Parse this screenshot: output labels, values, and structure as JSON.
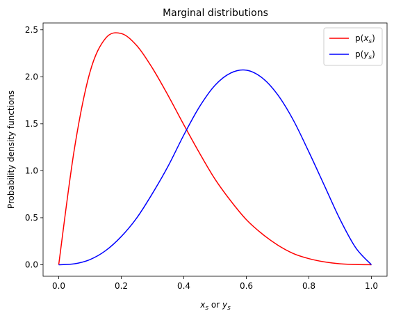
{
  "chart_data": {
    "type": "line",
    "title": "Marginal distributions",
    "xlabel": {
      "a": "x",
      "a_sub": "s",
      "mid": " or ",
      "b": "y",
      "b_sub": "s"
    },
    "ylabel": "Probability density functions",
    "xlim": [
      -0.05,
      1.05
    ],
    "ylim": [
      -0.1225,
      2.5725
    ],
    "xticks": [
      0.0,
      0.2,
      0.4,
      0.6,
      0.8,
      1.0
    ],
    "xtick_labels": [
      "0.0",
      "0.2",
      "0.4",
      "0.6",
      "0.8",
      "1.0"
    ],
    "yticks": [
      0.0,
      0.5,
      1.0,
      1.5,
      2.0,
      2.5
    ],
    "ytick_labels": [
      "0.0",
      "0.5",
      "1.0",
      "1.5",
      "2.0",
      "2.5"
    ],
    "grid": false,
    "legend_position": "top-right",
    "series": [
      {
        "name": {
          "pre": "p(",
          "var": "x",
          "sub": "s",
          "post": ")"
        },
        "color": "#ff0000",
        "x": [
          0.0,
          0.05,
          0.1,
          0.15,
          0.2,
          0.25,
          0.3,
          0.35,
          0.4,
          0.45,
          0.5,
          0.55,
          0.6,
          0.65,
          0.7,
          0.75,
          0.8,
          0.85,
          0.9,
          0.95,
          1.0
        ],
        "y": [
          0.0,
          1.23,
          2.05,
          2.41,
          2.46,
          2.33,
          2.09,
          1.8,
          1.49,
          1.19,
          0.91,
          0.68,
          0.48,
          0.33,
          0.21,
          0.12,
          0.065,
          0.03,
          0.01,
          0.002,
          0.0
        ]
      },
      {
        "name": {
          "pre": "p(",
          "var": "y",
          "sub": "s",
          "post": ")"
        },
        "color": "#0000ff",
        "x": [
          0.0,
          0.05,
          0.1,
          0.15,
          0.2,
          0.25,
          0.3,
          0.35,
          0.4,
          0.45,
          0.5,
          0.55,
          0.6,
          0.65,
          0.7,
          0.75,
          0.8,
          0.85,
          0.9,
          0.95,
          1.0
        ],
        "y": [
          0.0,
          0.01,
          0.055,
          0.15,
          0.3,
          0.5,
          0.76,
          1.05,
          1.38,
          1.68,
          1.91,
          2.04,
          2.07,
          1.99,
          1.81,
          1.54,
          1.2,
          0.84,
          0.48,
          0.18,
          0.0
        ]
      }
    ]
  }
}
